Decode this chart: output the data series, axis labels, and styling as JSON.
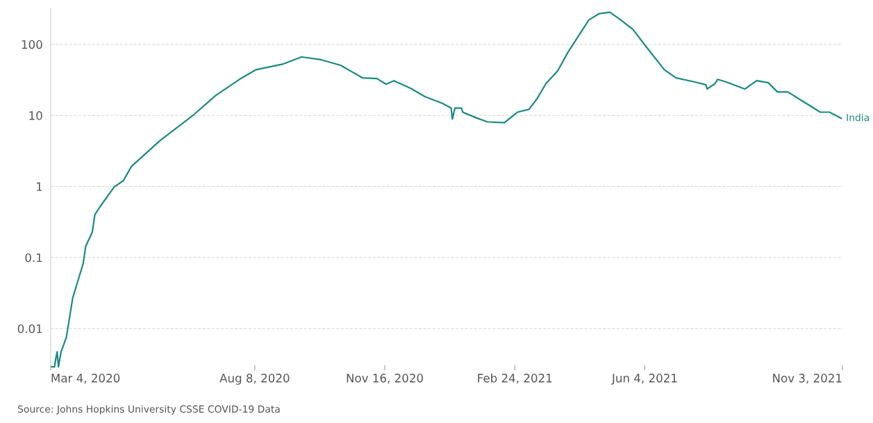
{
  "chart_data": {
    "type": "line",
    "log": "y",
    "grid": "y",
    "line_style": "solid",
    "marker": "none",
    "xlim": [
      "2020-03-04",
      "2021-11-03"
    ],
    "xticks": [
      {
        "value": "2020-03-04",
        "label": "Mar 4, 2020"
      },
      {
        "value": "2020-08-08",
        "label": "Aug 8, 2020"
      },
      {
        "value": "2020-11-16",
        "label": "Nov 16, 2020"
      },
      {
        "value": "2021-02-24",
        "label": "Feb 24, 2021"
      },
      {
        "value": "2021-06-04",
        "label": "Jun 4, 2021"
      },
      {
        "value": "2021-11-03",
        "label": "Nov 3, 2021"
      }
    ],
    "ylim": [
      0.0026,
      320
    ],
    "yticks": [
      0.01,
      0.1,
      1,
      10,
      100
    ],
    "annotations": [
      "Source: Johns Hopkins University CSSE COVID-19 Data"
    ],
    "x": [
      "2020-03-04",
      "2020-03-07",
      "2020-03-08",
      "2020-03-09",
      "2020-03-10",
      "2020-03-12",
      "2020-03-16",
      "2020-03-21",
      "2020-03-25",
      "2020-03-29",
      "2020-03-31",
      "2020-04-05",
      "2020-04-07",
      "2020-04-11",
      "2020-04-22",
      "2020-04-29",
      "2020-05-05",
      "2020-05-27",
      "2020-06-22",
      "2020-07-09",
      "2020-07-29",
      "2020-08-09",
      "2020-08-30",
      "2020-09-13",
      "2020-09-28",
      "2020-10-13",
      "2020-10-30",
      "2020-11-10",
      "2020-11-17",
      "2020-11-23",
      "2020-12-06",
      "2020-12-17",
      "2020-12-30",
      "2021-01-06",
      "2021-01-07",
      "2021-01-09",
      "2021-01-14",
      "2021-01-15",
      "2021-01-25",
      "2021-02-03",
      "2021-02-16",
      "2021-02-26",
      "2021-03-07",
      "2021-03-13",
      "2021-03-20",
      "2021-03-29",
      "2021-04-06",
      "2021-04-22",
      "2021-04-30",
      "2021-05-08",
      "2021-05-15",
      "2021-05-26",
      "2021-06-04",
      "2021-06-19",
      "2021-06-28",
      "2021-07-13",
      "2021-07-21",
      "2021-07-22",
      "2021-07-28",
      "2021-07-30",
      "2021-08-06",
      "2021-08-20",
      "2021-08-29",
      "2021-09-07",
      "2021-09-14",
      "2021-09-22",
      "2021-10-03",
      "2021-10-17",
      "2021-10-24",
      "2021-11-02"
    ],
    "series": [
      {
        "name": "India",
        "color": "#1a8a80",
        "values": [
          0.0029,
          0.0029,
          0.0038,
          0.0047,
          0.0029,
          0.0047,
          0.0074,
          0.027,
          0.047,
          0.082,
          0.144,
          0.226,
          0.4,
          0.52,
          0.99,
          1.21,
          1.9,
          4.4,
          10.2,
          19.1,
          33.7,
          44,
          53,
          66.5,
          60.8,
          50.7,
          33.7,
          33,
          27.5,
          30.8,
          24,
          18.3,
          14.9,
          12.7,
          8.9,
          12.7,
          12.7,
          11.1,
          9.3,
          8.1,
          7.9,
          11.1,
          12.2,
          17.1,
          28.1,
          42.3,
          78,
          221,
          271,
          283,
          231,
          161,
          98,
          44,
          33.7,
          29.4,
          26.9,
          23.5,
          28.1,
          32.2,
          29.4,
          23.5,
          30.8,
          28.8,
          21.4,
          21.4,
          16,
          11.1,
          11.1,
          9.1
        ]
      }
    ]
  }
}
